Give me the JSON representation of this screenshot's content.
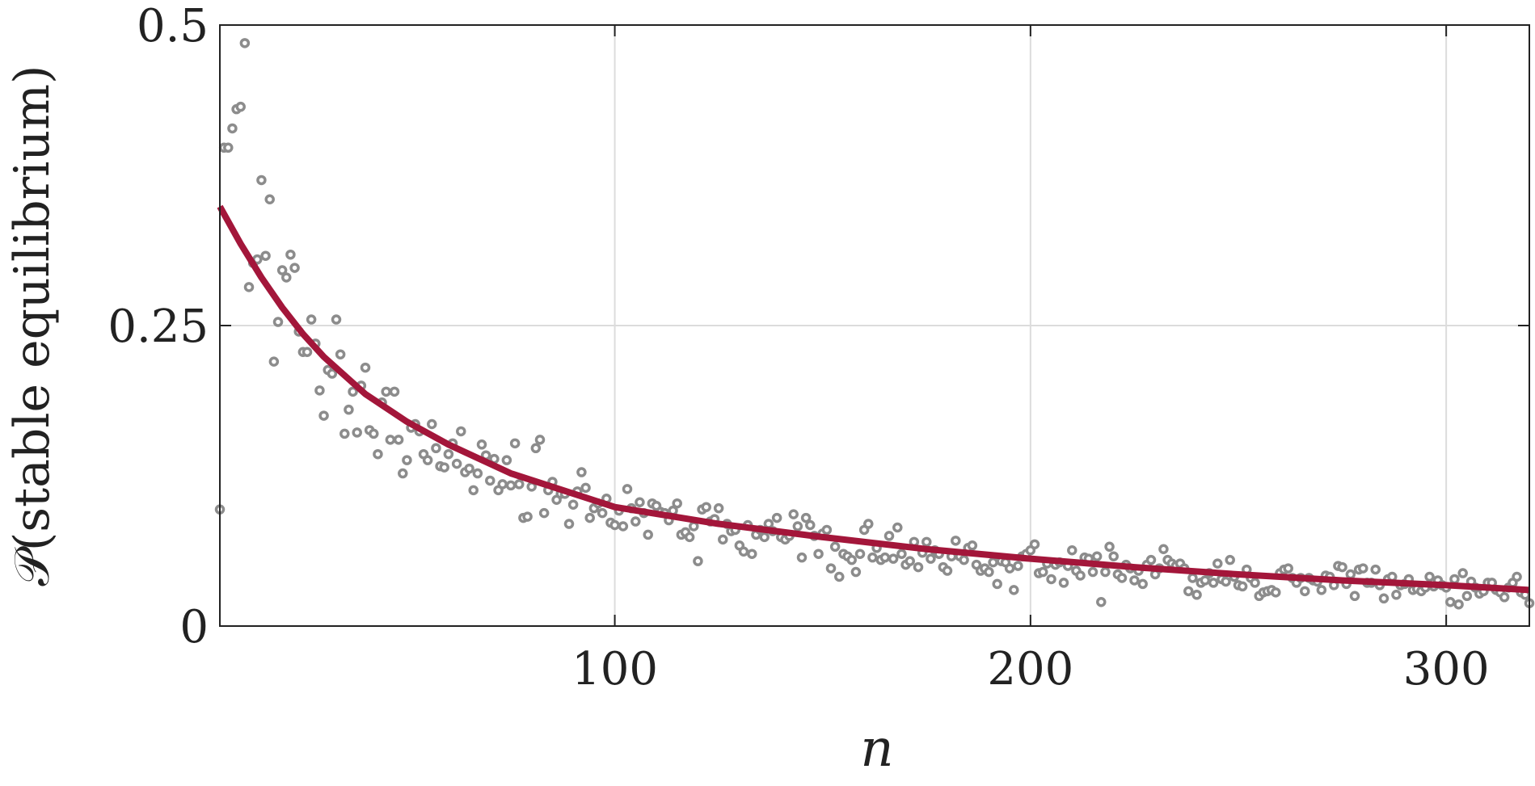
{
  "chart_data": {
    "type": "scatter",
    "xlabel": "n",
    "ylabel": "𝒫(stable equilibrium)",
    "xlim": [
      5,
      320
    ],
    "ylim": [
      0,
      0.5
    ],
    "xticks": [
      100,
      200,
      300
    ],
    "yticks": [
      0,
      0.25,
      0.5
    ],
    "grid": true,
    "series": [
      {
        "type": "scatter",
        "color": "#8c8c8c",
        "x": [
          5,
          6,
          7,
          8,
          9,
          10,
          11,
          12,
          13,
          14,
          15,
          16,
          17,
          18,
          19,
          20,
          21,
          22,
          23,
          24,
          25,
          26,
          27,
          28,
          29,
          30,
          31,
          32,
          33,
          34,
          35,
          36,
          37,
          38,
          39,
          40,
          41,
          42,
          43,
          44,
          45,
          46,
          47,
          48,
          49,
          50,
          51,
          52,
          53,
          54,
          55,
          56,
          57,
          58,
          59,
          60,
          61,
          62,
          63,
          64,
          65,
          66,
          67,
          68,
          69,
          70,
          71,
          72,
          73,
          74,
          75,
          76,
          77,
          78,
          79,
          80,
          81,
          82,
          83,
          84,
          85,
          86,
          87,
          88,
          89,
          90,
          91,
          92,
          93,
          94,
          95,
          96,
          97,
          98,
          99,
          100,
          101,
          102,
          103,
          104,
          105,
          106,
          107,
          108,
          109,
          110,
          111,
          112,
          113,
          114,
          115,
          116,
          117,
          118,
          119,
          120,
          121,
          122,
          123,
          124,
          125,
          126,
          127,
          128,
          129,
          130,
          131,
          132,
          133,
          134,
          135,
          136,
          137,
          138,
          139,
          140,
          141,
          142,
          143,
          144,
          145,
          146,
          147,
          148,
          149,
          150,
          151,
          152,
          153,
          154,
          155,
          156,
          157,
          158,
          159,
          160,
          161,
          162,
          163,
          164,
          165,
          166,
          167,
          168,
          169,
          170,
          171,
          172,
          173,
          174,
          175,
          176,
          177,
          178,
          179,
          180,
          181,
          182,
          183,
          184,
          185,
          186,
          187,
          188,
          189,
          190,
          191,
          192,
          193,
          194,
          195,
          196,
          197,
          198,
          199,
          200,
          201,
          202,
          203,
          204,
          205,
          206,
          207,
          208,
          209,
          210,
          211,
          212,
          213,
          214,
          215,
          216,
          217,
          218,
          219,
          220,
          221,
          222,
          223,
          224,
          225,
          226,
          227,
          228,
          229,
          230,
          231,
          232,
          233,
          234,
          235,
          236,
          237,
          238,
          239,
          240,
          241,
          242,
          243,
          244,
          245,
          246,
          247,
          248,
          249,
          250,
          251,
          252,
          253,
          254,
          255,
          256,
          257,
          258,
          259,
          260,
          261,
          262,
          263,
          264,
          265,
          266,
          267,
          268,
          269,
          270,
          271,
          272,
          273,
          274,
          275,
          276,
          277,
          278,
          279,
          280,
          281,
          282,
          283,
          284,
          285,
          286,
          287,
          288,
          289,
          290,
          291,
          292,
          293,
          294,
          295,
          296,
          297,
          298,
          299,
          300,
          301,
          302,
          303,
          304,
          305,
          306,
          307,
          308,
          309,
          310,
          311,
          312,
          313,
          314,
          315,
          316,
          317,
          318,
          319,
          320
        ],
        "values": [
          0.097,
          0.398,
          0.398,
          0.414,
          0.43,
          0.432,
          0.485,
          0.282,
          0.302,
          0.305,
          0.371,
          0.308,
          0.355,
          0.22,
          0.253,
          0.296,
          0.29,
          0.309,
          0.298,
          0.245,
          0.228,
          0.228,
          0.255,
          0.235,
          0.196,
          0.175,
          0.213,
          0.21,
          0.255,
          0.226,
          0.16,
          0.18,
          0.195,
          0.161,
          0.2,
          0.215,
          0.163,
          0.16,
          0.143,
          0.186,
          0.195,
          0.155,
          0.195,
          0.155,
          0.127,
          0.138,
          0.165,
          0.168,
          0.162,
          0.143,
          0.138,
          0.168,
          0.148,
          0.133,
          0.132,
          0.143,
          0.152,
          0.135,
          0.162,
          0.128,
          0.131,
          0.113,
          0.127,
          0.151,
          0.142,
          0.121,
          0.139,
          0.113,
          0.118,
          0.138,
          0.117,
          0.152,
          0.118,
          0.09,
          0.091,
          0.116,
          0.148,
          0.155,
          0.094,
          0.113,
          0.12,
          0.105,
          0.11,
          0.11,
          0.085,
          0.101,
          0.112,
          0.128,
          0.115,
          0.09,
          0.098,
          0.102,
          0.094,
          0.106,
          0.086,
          0.084,
          0.096,
          0.083,
          0.114,
          0.098,
          0.087,
          0.103,
          0.094,
          0.076,
          0.102,
          0.1,
          0.095,
          0.094,
          0.088,
          0.096,
          0.102,
          0.076,
          0.078,
          0.074,
          0.083,
          0.054,
          0.097,
          0.099,
          0.087,
          0.089,
          0.098,
          0.072,
          0.085,
          0.079,
          0.08,
          0.067,
          0.062,
          0.084,
          0.06,
          0.076,
          0.08,
          0.074,
          0.085,
          0.079,
          0.09,
          0.074,
          0.072,
          0.075,
          0.093,
          0.083,
          0.057,
          0.09,
          0.084,
          0.075,
          0.06,
          0.077,
          0.08,
          0.048,
          0.066,
          0.041,
          0.06,
          0.058,
          0.055,
          0.045,
          0.06,
          0.08,
          0.085,
          0.057,
          0.065,
          0.055,
          0.057,
          0.075,
          0.056,
          0.082,
          0.06,
          0.051,
          0.054,
          0.07,
          0.049,
          0.061,
          0.07,
          0.056,
          0.063,
          0.06,
          0.049,
          0.046,
          0.058,
          0.071,
          0.058,
          0.055,
          0.065,
          0.067,
          0.051,
          0.046,
          0.048,
          0.045,
          0.053,
          0.035,
          0.054,
          0.053,
          0.048,
          0.03,
          0.05,
          0.058,
          0.06,
          0.063,
          0.068,
          0.044,
          0.045,
          0.052,
          0.039,
          0.051,
          0.053,
          0.036,
          0.05,
          0.063,
          0.046,
          0.042,
          0.057,
          0.056,
          0.045,
          0.058,
          0.02,
          0.045,
          0.066,
          0.058,
          0.043,
          0.04,
          0.051,
          0.048,
          0.038,
          0.046,
          0.035,
          0.051,
          0.055,
          0.043,
          0.048,
          0.064,
          0.055,
          0.052,
          0.05,
          0.052,
          0.048,
          0.029,
          0.04,
          0.026,
          0.036,
          0.038,
          0.044,
          0.036,
          0.052,
          0.039,
          0.037,
          0.055,
          0.041,
          0.034,
          0.033,
          0.047,
          0.04,
          0.036,
          0.025,
          0.028,
          0.029,
          0.03,
          0.028,
          0.044,
          0.047,
          0.048,
          0.04,
          0.036,
          0.04,
          0.029,
          0.04,
          0.038,
          0.037,
          0.03,
          0.042,
          0.041,
          0.034,
          0.05,
          0.049,
          0.035,
          0.043,
          0.025,
          0.047,
          0.048,
          0.036,
          0.036,
          0.047,
          0.034,
          0.023,
          0.039,
          0.041,
          0.026,
          0.034,
          0.035,
          0.039,
          0.03,
          0.031,
          0.029,
          0.032,
          0.041,
          0.033,
          0.038,
          0.034,
          0.032,
          0.02,
          0.039,
          0.018,
          0.044,
          0.025,
          0.037,
          0.032,
          0.027,
          0.029,
          0.036,
          0.036,
          0.03,
          0.028,
          0.024,
          0.032,
          0.036,
          0.041,
          0.028,
          0.026,
          0.019
        ]
      },
      {
        "type": "line",
        "color": "#a3163a",
        "x": [
          5,
          10,
          15,
          20,
          25,
          30,
          40,
          50,
          60,
          75,
          100,
          125,
          150,
          175,
          200,
          225,
          250,
          275,
          300,
          320
        ],
        "values": [
          0.349,
          0.318,
          0.29,
          0.265,
          0.243,
          0.224,
          0.193,
          0.17,
          0.151,
          0.127,
          0.099,
          0.085,
          0.074,
          0.064,
          0.056,
          0.049,
          0.043,
          0.038,
          0.034,
          0.03
        ]
      }
    ]
  }
}
